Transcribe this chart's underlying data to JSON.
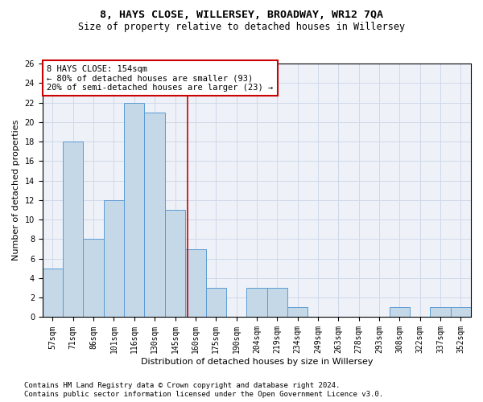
{
  "title": "8, HAYS CLOSE, WILLERSEY, BROADWAY, WR12 7QA",
  "subtitle": "Size of property relative to detached houses in Willersey",
  "xlabel": "Distribution of detached houses by size in Willersey",
  "ylabel": "Number of detached properties",
  "categories": [
    "57sqm",
    "71sqm",
    "86sqm",
    "101sqm",
    "116sqm",
    "130sqm",
    "145sqm",
    "160sqm",
    "175sqm",
    "190sqm",
    "204sqm",
    "219sqm",
    "234sqm",
    "249sqm",
    "263sqm",
    "278sqm",
    "293sqm",
    "308sqm",
    "322sqm",
    "337sqm",
    "352sqm"
  ],
  "values": [
    5,
    18,
    8,
    12,
    22,
    21,
    11,
    7,
    3,
    0,
    3,
    3,
    1,
    0,
    0,
    0,
    0,
    1,
    0,
    1,
    1
  ],
  "bar_color": "#c5d8e8",
  "bar_edge_color": "#5b9bd5",
  "bar_width": 1.0,
  "vline_x": 6.6,
  "vline_color": "#cc0000",
  "annotation_text": "8 HAYS CLOSE: 154sqm\n← 80% of detached houses are smaller (93)\n20% of semi-detached houses are larger (23) →",
  "annotation_box_color": "white",
  "annotation_box_edge_color": "#cc0000",
  "ylim": [
    0,
    26
  ],
  "yticks": [
    0,
    2,
    4,
    6,
    8,
    10,
    12,
    14,
    16,
    18,
    20,
    22,
    24,
    26
  ],
  "grid_color": "#d0d8e8",
  "bg_color": "#eef2f8",
  "footer1": "Contains HM Land Registry data © Crown copyright and database right 2024.",
  "footer2": "Contains public sector information licensed under the Open Government Licence v3.0.",
  "title_fontsize": 9.5,
  "subtitle_fontsize": 8.5,
  "xlabel_fontsize": 8,
  "ylabel_fontsize": 8,
  "tick_fontsize": 7,
  "annotation_fontsize": 7.5,
  "footer_fontsize": 6.5
}
